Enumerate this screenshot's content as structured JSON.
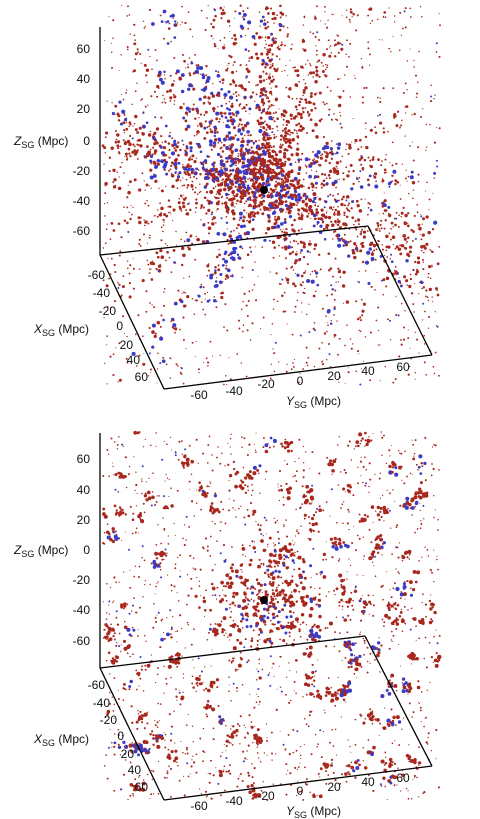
{
  "colors": {
    "red": "#a8281e",
    "blue": "#3a3ac8",
    "black": "#000000",
    "axis": "#000000"
  },
  "chart_data": [
    {
      "type": "scatter",
      "xlabel": {
        "main": "X",
        "sub": "SG",
        "rest": " (Mpc)"
      },
      "ylabel": {
        "main": "Y",
        "sub": "SG",
        "rest": " (Mpc)"
      },
      "zlabel": {
        "main": "Z",
        "sub": "SG",
        "rest": " (Mpc)"
      },
      "x_ticks": [
        "-60",
        "-40",
        "-20",
        "0",
        "20",
        "40",
        "60"
      ],
      "y_ticks": [
        "-60",
        "-40",
        "-20",
        "0",
        "20",
        "40",
        "60"
      ],
      "z_ticks": [
        "60",
        "40",
        "20",
        "0",
        "-20",
        "-40",
        "-60"
      ],
      "xlim": [
        -70,
        70
      ],
      "ylim": [
        -70,
        70
      ],
      "zlim": [
        -75,
        75
      ],
      "grid": false,
      "series": [
        {
          "color": "red",
          "points": "dense filaments radiating from origin"
        },
        {
          "color": "blue",
          "points": "sparser along filaments"
        }
      ]
    },
    {
      "type": "scatter",
      "xlabel": {
        "main": "X",
        "sub": "SG",
        "rest": " (Mpc)"
      },
      "ylabel": {
        "main": "Y",
        "sub": "SG",
        "rest": " (Mpc)"
      },
      "zlabel": {
        "main": "Z",
        "sub": "SG",
        "rest": " (Mpc)"
      },
      "x_ticks": [
        "-60",
        "-40",
        "-20",
        "0",
        "20",
        "40",
        "60"
      ],
      "y_ticks": [
        "-60",
        "-40",
        "-20",
        "0",
        "20",
        "40",
        "60"
      ],
      "z_ticks": [
        "60",
        "40",
        "20",
        "0",
        "-20",
        "-40",
        "-60"
      ],
      "xlim": [
        -70,
        70
      ],
      "ylim": [
        -70,
        70
      ],
      "zlim": [
        -75,
        75
      ],
      "grid": false,
      "series": [
        {
          "color": "red",
          "points": "clustered clumps"
        },
        {
          "color": "blue",
          "points": "sparse clumps"
        }
      ]
    }
  ]
}
